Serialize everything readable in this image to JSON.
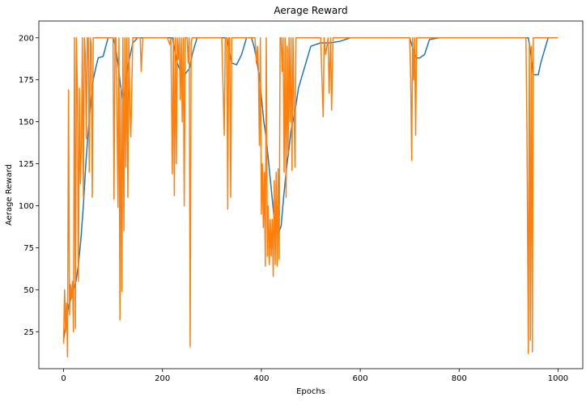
{
  "chart_data": {
    "type": "line",
    "title": "Aerage Reward",
    "xlabel": "Epochs",
    "ylabel": "Aerage Reward",
    "xlim": [
      -50,
      1050
    ],
    "ylim": [
      3,
      210
    ],
    "xticks": [
      0,
      200,
      400,
      600,
      800,
      1000
    ],
    "yticks": [
      25,
      50,
      75,
      100,
      125,
      150,
      175,
      200
    ],
    "grid": false,
    "legend": "none",
    "series": [
      {
        "color": "#1f77b4",
        "x": [
          0,
          5,
          10,
          15,
          20,
          25,
          30,
          35,
          40,
          45,
          50,
          55,
          60,
          65,
          70,
          80,
          90,
          95,
          100,
          105,
          110,
          115,
          120,
          125,
          130,
          140,
          150,
          160,
          170,
          180,
          190,
          200,
          210,
          220,
          230,
          240,
          245,
          250,
          255,
          260,
          270,
          280,
          290,
          300,
          310,
          320,
          330,
          340,
          350,
          360,
          370,
          380,
          385,
          390,
          395,
          400,
          405,
          410,
          415,
          420,
          425,
          430,
          435,
          440,
          445,
          450,
          455,
          460,
          465,
          470,
          475,
          480,
          490,
          500,
          520,
          540,
          560,
          580,
          600,
          650,
          700,
          705,
          710,
          715,
          720,
          730,
          740,
          760,
          800,
          850,
          900,
          940,
          945,
          950,
          960,
          965,
          970,
          975,
          980,
          1000
        ],
        "y": [
          20,
          30,
          40,
          45,
          50,
          55,
          65,
          80,
          100,
          125,
          145,
          162,
          175,
          182,
          188,
          189,
          200,
          200,
          200,
          195,
          185,
          172,
          163,
          170,
          183,
          197,
          200,
          200,
          200,
          200,
          200,
          200,
          200,
          200,
          185,
          177,
          178,
          180,
          182,
          190,
          200,
          200,
          200,
          200,
          200,
          200,
          200,
          185,
          184,
          190,
          200,
          200,
          195,
          188,
          178,
          165,
          150,
          140,
          125,
          110,
          95,
          86,
          84,
          88,
          105,
          120,
          132,
          145,
          152,
          160,
          170,
          175,
          185,
          195,
          197,
          197,
          198,
          200,
          200,
          200,
          200,
          195,
          190,
          188,
          188,
          190,
          199,
          200,
          200,
          200,
          200,
          200,
          190,
          178,
          178,
          185,
          190,
          195,
          200,
          200
        ]
      },
      {
        "color": "#ff7f0e",
        "x": [
          0,
          2,
          4,
          6,
          8,
          10,
          12,
          14,
          16,
          18,
          20,
          22,
          24,
          26,
          28,
          30,
          32,
          34,
          36,
          38,
          40,
          42,
          44,
          46,
          48,
          50,
          52,
          54,
          56,
          58,
          60,
          62,
          64,
          70,
          80,
          90,
          100,
          102,
          104,
          106,
          108,
          110,
          112,
          114,
          116,
          118,
          120,
          122,
          124,
          126,
          128,
          130,
          132,
          134,
          136,
          140,
          150,
          155,
          157,
          160,
          180,
          190,
          200,
          210,
          215,
          217,
          220,
          222,
          224,
          226,
          228,
          230,
          232,
          234,
          236,
          238,
          240,
          242,
          244,
          246,
          250,
          252,
          254,
          256,
          258,
          260,
          280,
          300,
          320,
          325,
          327,
          330,
          332,
          334,
          336,
          338,
          340,
          342,
          345,
          350,
          360,
          370,
          380,
          385,
          387,
          390,
          392,
          394,
          396,
          398,
          400,
          402,
          404,
          406,
          408,
          410,
          412,
          414,
          416,
          418,
          420,
          422,
          424,
          426,
          428,
          430,
          432,
          434,
          436,
          438,
          440,
          442,
          444,
          446,
          448,
          450,
          452,
          454,
          456,
          458,
          460,
          462,
          464,
          466,
          468,
          470,
          472,
          475,
          480,
          490,
          500,
          520,
          525,
          527,
          530,
          535,
          537,
          540,
          542,
          545,
          550,
          570,
          600,
          650,
          700,
          702,
          704,
          706,
          708,
          710,
          712,
          714,
          716,
          718,
          720,
          730,
          750,
          800,
          850,
          900,
          930,
          935,
          937,
          940,
          942,
          944,
          946,
          948,
          950,
          960,
          1000
        ],
        "y": [
          18,
          50,
          25,
          42,
          10,
          169,
          35,
          53,
          45,
          55,
          25,
          200,
          27,
          200,
          168,
          55,
          170,
          113,
          135,
          200,
          105,
          200,
          190,
          140,
          200,
          200,
          120,
          200,
          195,
          105,
          200,
          200,
          200,
          200,
          200,
          200,
          200,
          104,
          200,
          200,
          156,
          99,
          200,
          32,
          170,
          49,
          200,
          85,
          200,
          123,
          200,
          105,
          200,
          160,
          141,
          200,
          200,
          200,
          180,
          200,
          200,
          200,
          200,
          200,
          196,
          200,
          119,
          200,
          106,
          200,
          125,
          200,
          187,
          200,
          163,
          200,
          150,
          200,
          100,
          200,
          200,
          185,
          200,
          16,
          197,
          200,
          200,
          200,
          200,
          142,
          200,
          200,
          98,
          200,
          200,
          105,
          200,
          200,
          200,
          200,
          200,
          200,
          200,
          200,
          200,
          185,
          195,
          182,
          136,
          200,
          95,
          125,
          87,
          120,
          64,
          200,
          70,
          100,
          65,
          92,
          70,
          92,
          58,
          115,
          65,
          120,
          64,
          122,
          68,
          200,
          200,
          180,
          200,
          120,
          200,
          105,
          195,
          131,
          200,
          150,
          200,
          121,
          200,
          160,
          123,
          200,
          200,
          200,
          200,
          200,
          200,
          200,
          153,
          200,
          190,
          200,
          167,
          200,
          157,
          200,
          200,
          200,
          200,
          200,
          200,
          176,
          127,
          200,
          175,
          200,
          142,
          200,
          200,
          200,
          200,
          200,
          200,
          200,
          200,
          200,
          200,
          200,
          150,
          12,
          197,
          20,
          195,
          13,
          200,
          200,
          200
        ]
      }
    ]
  }
}
